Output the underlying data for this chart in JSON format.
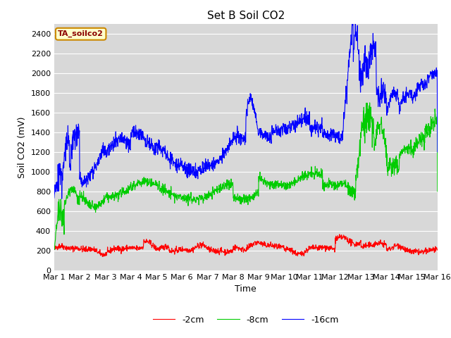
{
  "title": "Set B Soil CO2",
  "xlabel": "Time",
  "ylabel": "Soil CO2 (mV)",
  "ylim": [
    0,
    2500
  ],
  "xlim": [
    0,
    15
  ],
  "xtick_labels": [
    "Mar 1",
    "Mar 2",
    "Mar 3",
    "Mar 4",
    "Mar 5",
    "Mar 6",
    "Mar 7",
    "Mar 8",
    "Mar 9",
    "Mar 10",
    "Mar 11",
    "Mar 12",
    "Mar 13",
    "Mar 14",
    "Mar 15",
    "Mar 16"
  ],
  "xtick_positions": [
    0,
    1,
    2,
    3,
    4,
    5,
    6,
    7,
    8,
    9,
    10,
    11,
    12,
    13,
    14,
    15
  ],
  "ytick_positions": [
    0,
    200,
    400,
    600,
    800,
    1000,
    1200,
    1400,
    1600,
    1800,
    2000,
    2200,
    2400
  ],
  "line_colors": [
    "#ff0000",
    "#00cc00",
    "#0000ff"
  ],
  "line_labels": [
    "-2cm",
    "-8cm",
    "-16cm"
  ],
  "legend_label": "TA_soilco2",
  "fig_bg_color": "#ffffff",
  "plot_bg_color": "#d8d8d8",
  "grid_color": "#ffffff",
  "title_fontsize": 11,
  "axis_label_fontsize": 9,
  "tick_fontsize": 8,
  "legend_fontsize": 9,
  "line_width": 0.8
}
